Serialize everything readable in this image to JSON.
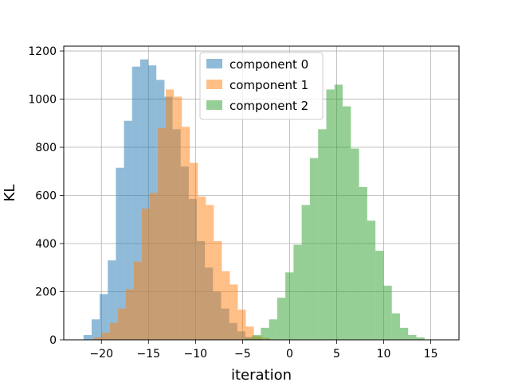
{
  "chart_data": {
    "type": "bar",
    "xlabel": "iteration",
    "ylabel": "KL",
    "xlim": [
      -24,
      18
    ],
    "ylim": [
      0,
      1220
    ],
    "x_ticks": [
      -20,
      -15,
      -10,
      -5,
      0,
      5,
      10,
      15
    ],
    "y_ticks": [
      0,
      200,
      400,
      600,
      800,
      1000,
      1200
    ],
    "grid": true,
    "legend_position": "top-center",
    "series": [
      {
        "name": "component 0",
        "color": "#1f77b4",
        "opacity": 0.5,
        "bin_start": -21.9,
        "bin_width": 0.86,
        "values": [
          20,
          85,
          190,
          330,
          715,
          910,
          1135,
          1165,
          1140,
          1080,
          1010,
          875,
          720,
          585,
          410,
          300,
          200,
          130,
          70,
          35,
          12,
          4
        ]
      },
      {
        "name": "component 1",
        "color": "#ff7f0e",
        "opacity": 0.5,
        "bin_start": -20.8,
        "bin_width": 0.85,
        "values": [
          10,
          30,
          70,
          130,
          210,
          325,
          545,
          610,
          880,
          1040,
          1010,
          885,
          735,
          595,
          560,
          410,
          285,
          230,
          125,
          55,
          15,
          8
        ]
      },
      {
        "name": "component 2",
        "color": "#2ca02c",
        "opacity": 0.5,
        "bin_start": -4.8,
        "bin_width": 0.87,
        "values": [
          5,
          20,
          50,
          85,
          175,
          280,
          395,
          560,
          755,
          875,
          1040,
          1060,
          970,
          795,
          635,
          495,
          370,
          225,
          110,
          50,
          20,
          10
        ]
      }
    ]
  }
}
